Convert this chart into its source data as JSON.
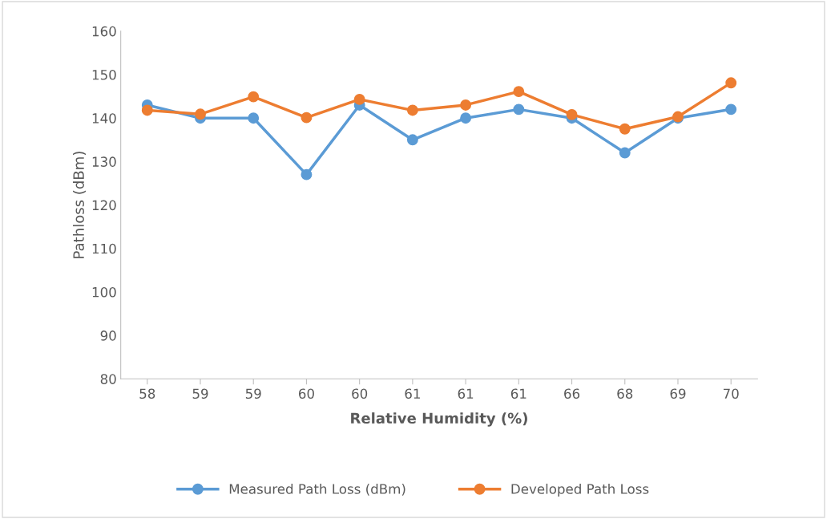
{
  "chart_data": {
    "type": "line",
    "xlabel": "Relative Humidity (%)",
    "ylabel": "Pathloss (dBm)",
    "categories": [
      "58",
      "59",
      "59",
      "60",
      "60",
      "61",
      "61",
      "61",
      "66",
      "68",
      "69",
      "70"
    ],
    "series": [
      {
        "name": "Measured Path Loss (dBm)",
        "color": "#5b9bd5",
        "values": [
          143,
          140,
          140,
          127,
          143,
          135,
          140,
          142,
          140,
          132,
          140,
          142
        ]
      },
      {
        "name": "Developed Path Loss",
        "color": "#ed7d31",
        "values": [
          141.8,
          140.9,
          144.9,
          140.1,
          144.3,
          141.8,
          143.0,
          146.1,
          140.8,
          137.5,
          140.3,
          148.1
        ]
      }
    ],
    "ylim": [
      80,
      160
    ],
    "yticks": [
      80,
      90,
      100,
      110,
      120,
      130,
      140,
      150,
      160
    ],
    "grid": false,
    "legend": "bottom",
    "marker": "circle",
    "line_style": "solid"
  }
}
